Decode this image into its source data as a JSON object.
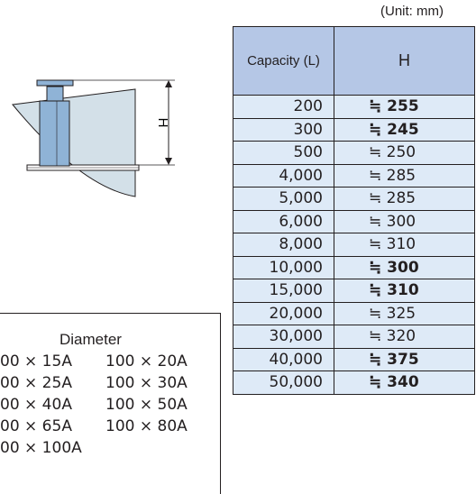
{
  "unit_note": "(Unit: mm)",
  "table": {
    "header_capacity": "Capacity (L)",
    "header_h": "H",
    "rows": [
      {
        "capacity": "200",
        "h": "≒ 255",
        "bold": true
      },
      {
        "capacity": "300",
        "h": "≒ 245",
        "bold": true
      },
      {
        "capacity": "500",
        "h": "≒ 250",
        "bold": false
      },
      {
        "capacity": "4,000",
        "h": "≒ 285",
        "bold": false
      },
      {
        "capacity": "5,000",
        "h": "≒ 285",
        "bold": false
      },
      {
        "capacity": "6,000",
        "h": "≒ 300",
        "bold": false
      },
      {
        "capacity": "8,000",
        "h": "≒ 310",
        "bold": false
      },
      {
        "capacity": "10,000",
        "h": "≒ 300",
        "bold": true
      },
      {
        "capacity": "15,000",
        "h": "≒ 310",
        "bold": true
      },
      {
        "capacity": "20,000",
        "h": "≒ 325",
        "bold": false
      },
      {
        "capacity": "30,000",
        "h": "≒ 320",
        "bold": false
      },
      {
        "capacity": "40,000",
        "h": "≒ 375",
        "bold": true
      },
      {
        "capacity": "50,000",
        "h": "≒ 340",
        "bold": true
      }
    ]
  },
  "diagram": {
    "dimension_label": "H",
    "colors": {
      "tank_fill": "#d3e0e8",
      "fitting_fill": "#8fb3d6",
      "line": "#231f20"
    }
  },
  "diameter": {
    "title": "Diameter",
    "rows": [
      {
        "left": "00 × 15A",
        "right": "100 × 20A"
      },
      {
        "left": "00 × 25A",
        "right": "100 × 30A"
      },
      {
        "left": "00 × 40A",
        "right": "100 × 50A"
      },
      {
        "left": "00 × 65A",
        "right": "100 × 80A"
      },
      {
        "left": "00 × 100A",
        "right": ""
      }
    ]
  }
}
